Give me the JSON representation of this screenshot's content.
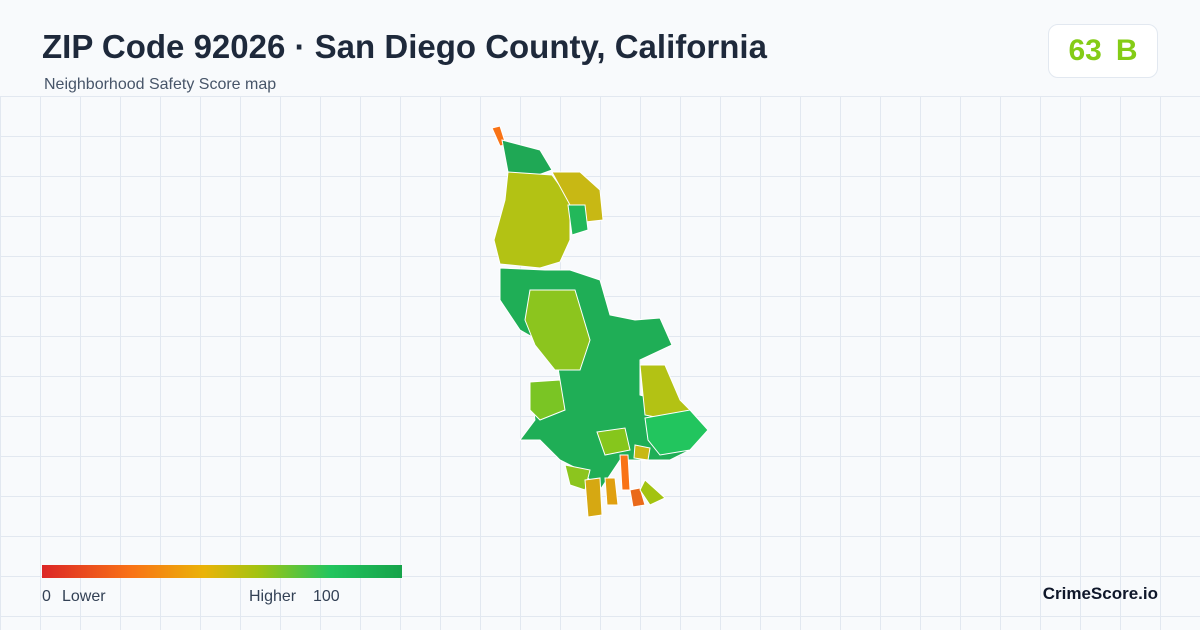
{
  "header": {
    "title": "ZIP Code 92026 · San Diego County, California",
    "subtitle": "Neighborhood Safety Score map"
  },
  "score": {
    "value": 63,
    "grade": "B"
  },
  "legend": {
    "min": 0,
    "min_label": "Lower",
    "max_label": "Higher",
    "max": 100
  },
  "brand": "CrimeScore.io"
}
